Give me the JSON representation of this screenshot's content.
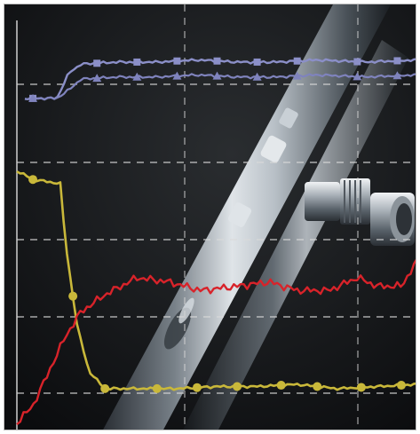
{
  "image": {
    "subject": "photographic-collage",
    "colors": {
      "background": "#0d0e10",
      "gridline": "#d9d9d9",
      "trace_upper_square": "#8b8fc8",
      "trace_upper_triangle": "#7f83bd",
      "trace_yellow": "#c9b83a",
      "trace_red": "#d8232a",
      "metal_highlight": "#e9eef2",
      "metal_shadow": "#3a4046"
    },
    "icons": [
      "square-marker-icon",
      "triangle-marker-icon",
      "circle-marker-icon",
      "fitting-connector-icon"
    ],
    "series_shape": {
      "square_trace": [
        [
          0.02,
          0.22
        ],
        [
          0.1,
          0.22
        ],
        [
          0.13,
          0.16
        ],
        [
          0.16,
          0.14
        ],
        [
          0.25,
          0.135
        ],
        [
          0.35,
          0.135
        ],
        [
          0.45,
          0.13
        ],
        [
          0.55,
          0.135
        ],
        [
          0.65,
          0.135
        ],
        [
          0.75,
          0.13
        ],
        [
          0.87,
          0.135
        ],
        [
          1.0,
          0.13
        ]
      ],
      "triangle_trace": [
        [
          0.02,
          0.22
        ],
        [
          0.1,
          0.22
        ],
        [
          0.13,
          0.2
        ],
        [
          0.16,
          0.175
        ],
        [
          0.25,
          0.17
        ],
        [
          0.35,
          0.17
        ],
        [
          0.45,
          0.165
        ],
        [
          0.55,
          0.17
        ],
        [
          0.65,
          0.17
        ],
        [
          0.75,
          0.165
        ],
        [
          0.87,
          0.17
        ],
        [
          1.0,
          0.165
        ]
      ],
      "yellow_trace": [
        [
          0.0,
          0.39
        ],
        [
          0.04,
          0.41
        ],
        [
          0.11,
          0.42
        ],
        [
          0.12,
          0.55
        ],
        [
          0.15,
          0.75
        ],
        [
          0.18,
          0.86
        ],
        [
          0.22,
          0.9
        ],
        [
          0.3,
          0.9
        ],
        [
          0.4,
          0.9
        ],
        [
          0.5,
          0.895
        ],
        [
          0.6,
          0.895
        ],
        [
          0.7,
          0.89
        ],
        [
          0.8,
          0.9
        ],
        [
          0.9,
          0.895
        ],
        [
          1.0,
          0.89
        ]
      ],
      "red_trace": [
        [
          0.0,
          0.98
        ],
        [
          0.04,
          0.94
        ],
        [
          0.08,
          0.86
        ],
        [
          0.12,
          0.78
        ],
        [
          0.16,
          0.72
        ],
        [
          0.22,
          0.68
        ],
        [
          0.3,
          0.64
        ],
        [
          0.38,
          0.65
        ],
        [
          0.46,
          0.67
        ],
        [
          0.55,
          0.66
        ],
        [
          0.63,
          0.65
        ],
        [
          0.7,
          0.67
        ],
        [
          0.78,
          0.67
        ],
        [
          0.85,
          0.64
        ],
        [
          0.9,
          0.66
        ],
        [
          0.96,
          0.66
        ],
        [
          1.0,
          0.6
        ]
      ]
    },
    "marker_positions": {
      "square_markers": [
        0.04,
        0.2,
        0.3,
        0.4,
        0.5,
        0.6,
        0.7,
        0.85,
        0.95
      ],
      "triangle_markers": [
        0.04,
        0.2,
        0.3,
        0.4,
        0.5,
        0.6,
        0.7,
        0.85,
        0.95
      ],
      "yellow_markers": [
        0.04,
        0.14,
        0.22,
        0.35,
        0.45,
        0.55,
        0.66,
        0.75,
        0.86,
        0.96
      ]
    }
  }
}
